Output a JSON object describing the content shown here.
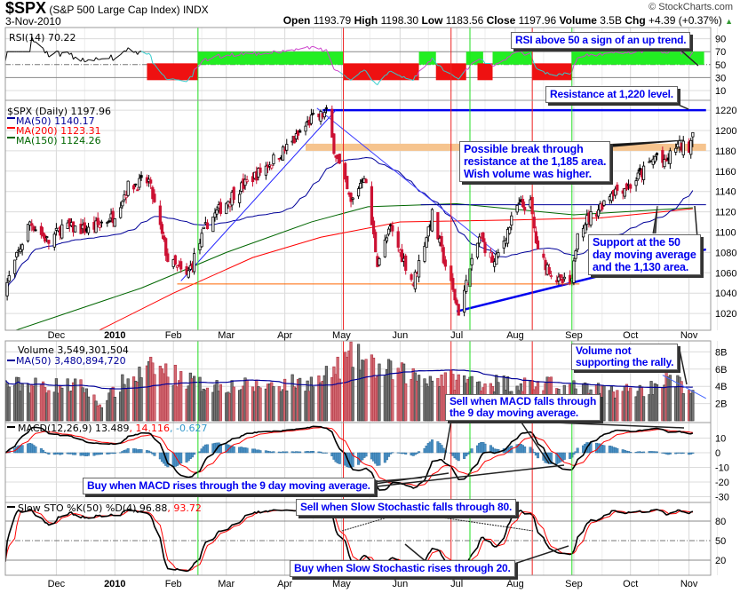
{
  "header": {
    "symbol": "$SPX",
    "name": "(S&P 500 Large Cap Index)",
    "exchange": "INDX",
    "date": "3-Nov-2010",
    "copyright": "© StockCharts.com",
    "open_label": "Open",
    "open": "1193.79",
    "high_label": "High",
    "high": "1198.30",
    "low_label": "Low",
    "low": "1183.56",
    "close_label": "Close",
    "close": "1197.96",
    "volume_label": "Volume",
    "volume": "3.5B",
    "chg_label": "Chg",
    "chg": "+4.39 (+0.37%)",
    "chg_arrow": "▲"
  },
  "labels": {
    "rsi": "RSI(14) 70.22",
    "price": "$SPX (Daily) 1197.96",
    "ma50": "MA(50) 1140.17",
    "ma200": "MA(200) 1123.31",
    "ma150": "MA(150) 1124.26",
    "volume": "Volume 3,549,301,504",
    "vol_ma": "MA(50) 3,480,894,720",
    "macd": "MACD(12,26,9) 13.489",
    "macd_signal": ", 14.116",
    "macd_hist": ", -0.627",
    "sto": "Slow STO %K(50) %D(4) 96.88",
    "sto_d": ", 93.72"
  },
  "annotations": {
    "rsi_note": "RSI above 50 a sign of an up trend.",
    "resistance_note": "Resistance at 1,220 level.",
    "breakout_note": [
      "Possible break through",
      "resistance at the 1,185 area.",
      "Wish volume was higher."
    ],
    "support_note": [
      "Support at the 50",
      "day moving average",
      "and the 1,130 area."
    ],
    "volume_note": [
      "Volume not",
      "supporting the rally."
    ],
    "macd_sell_note": [
      "Sell when MACD falls through",
      "the 9 day moving average."
    ],
    "macd_buy_note": "Buy when MACD rises through the 9 day moving average.",
    "sto_sell_note": "Sell when Slow Stochastic falls through 80.",
    "sto_buy_note": "Buy when Slow Stochastic rises through 20."
  },
  "chart_data": {
    "type": "candlestick",
    "title": "$SPX (S&P 500 Large Cap Index) INDX",
    "date_range": [
      "2009-11-04",
      "2010-11-03"
    ],
    "last_bar": {
      "open": 1193.79,
      "high": 1198.3,
      "low": 1183.56,
      "close": 1197.96,
      "volume_b": 3.55
    },
    "close_anchors": [
      [
        "2009-11-04",
        1045
      ],
      [
        "2009-11-17",
        1110
      ],
      [
        "2009-11-27",
        1090
      ],
      [
        "2009-12-04",
        1105
      ],
      [
        "2009-12-18",
        1102
      ],
      [
        "2009-12-31",
        1115
      ],
      [
        "2010-01-08",
        1145
      ],
      [
        "2010-01-19",
        1150
      ],
      [
        "2010-01-29",
        1073
      ],
      [
        "2010-02-08",
        1056
      ],
      [
        "2010-02-19",
        1109
      ],
      [
        "2010-03-05",
        1138
      ],
      [
        "2010-03-19",
        1160
      ],
      [
        "2010-04-05",
        1188
      ],
      [
        "2010-04-15",
        1211
      ],
      [
        "2010-04-23",
        1217
      ],
      [
        "2010-04-27",
        1183
      ],
      [
        "2010-05-06",
        1128
      ],
      [
        "2010-05-13",
        1157
      ],
      [
        "2010-05-20",
        1071
      ],
      [
        "2010-05-27",
        1103
      ],
      [
        "2010-06-08",
        1050
      ],
      [
        "2010-06-18",
        1117
      ],
      [
        "2010-06-24",
        1074
      ],
      [
        "2010-07-02",
        1022
      ],
      [
        "2010-07-13",
        1095
      ],
      [
        "2010-07-21",
        1069
      ],
      [
        "2010-08-02",
        1125
      ],
      [
        "2010-08-09",
        1127
      ],
      [
        "2010-08-13",
        1079
      ],
      [
        "2010-08-24",
        1051
      ],
      [
        "2010-08-31",
        1049
      ],
      [
        "2010-09-03",
        1104
      ],
      [
        "2010-09-13",
        1121
      ],
      [
        "2010-09-21",
        1140
      ],
      [
        "2010-10-01",
        1146
      ],
      [
        "2010-10-07",
        1158
      ],
      [
        "2010-10-15",
        1176
      ],
      [
        "2010-10-19",
        1166
      ],
      [
        "2010-10-25",
        1185
      ],
      [
        "2010-11-01",
        1184
      ],
      [
        "2010-11-03",
        1198
      ]
    ],
    "ma200_anchors": [
      [
        "2009-12-20",
        1000
      ],
      [
        "2010-02-01",
        1040
      ],
      [
        "2010-03-15",
        1075
      ],
      [
        "2010-04-20",
        1095
      ],
      [
        "2010-06-01",
        1110
      ],
      [
        "2010-08-01",
        1112
      ],
      [
        "2010-09-15",
        1114
      ],
      [
        "2010-11-03",
        1123
      ]
    ],
    "ma150_anchors": [
      [
        "2009-11-04",
        1000
      ],
      [
        "2010-01-15",
        1045
      ],
      [
        "2010-03-01",
        1080
      ],
      [
        "2010-04-15",
        1110
      ],
      [
        "2010-05-15",
        1125
      ],
      [
        "2010-07-01",
        1128
      ],
      [
        "2010-09-01",
        1117
      ],
      [
        "2010-11-03",
        1124
      ]
    ],
    "volume_anchors_b": [
      [
        "2009-11-04",
        4.2
      ],
      [
        "2009-12-15",
        4.0
      ],
      [
        "2009-12-24",
        1.8
      ],
      [
        "2010-01-05",
        4.3
      ],
      [
        "2010-01-22",
        6.2
      ],
      [
        "2010-02-15",
        4.2
      ],
      [
        "2010-03-15",
        4.0
      ],
      [
        "2010-04-20",
        4.6
      ],
      [
        "2010-05-07",
        7.5
      ],
      [
        "2010-05-20",
        6.0
      ],
      [
        "2010-06-15",
        5.0
      ],
      [
        "2010-07-15",
        4.5
      ],
      [
        "2010-08-15",
        4.2
      ],
      [
        "2010-09-15",
        3.5
      ],
      [
        "2010-10-10",
        3.6
      ],
      [
        "2010-10-20",
        5.0
      ],
      [
        "2010-11-03",
        3.55
      ]
    ],
    "series": [
      {
        "name": "MA(50)",
        "color": "#000099"
      },
      {
        "name": "MA(200)",
        "color": "#ff0000"
      },
      {
        "name": "MA(150)",
        "color": "#006600"
      }
    ],
    "month_labels": [
      [
        "2009-12-01",
        "Dec"
      ],
      [
        "2010-01-01",
        "2010"
      ],
      [
        "2010-02-01",
        "Feb"
      ],
      [
        "2010-03-01",
        "Mar"
      ],
      [
        "2010-04-01",
        "Apr"
      ],
      [
        "2010-05-01",
        "May"
      ],
      [
        "2010-06-01",
        "Jun"
      ],
      [
        "2010-07-01",
        "Jul"
      ],
      [
        "2010-08-01",
        "Aug"
      ],
      [
        "2010-09-01",
        "Sep"
      ],
      [
        "2010-10-01",
        "Oct"
      ],
      [
        "2010-11-01",
        "Nov"
      ]
    ],
    "price_ticks": [
      1220,
      1200,
      1180,
      1160,
      1140,
      1120,
      1100,
      1080,
      1060,
      1040,
      1020
    ],
    "rsi_ticks": [
      90,
      70,
      50,
      30,
      10
    ],
    "volume_ticks": [
      [
        8,
        "8B"
      ],
      [
        6,
        "6B"
      ],
      [
        4,
        "4B"
      ],
      [
        2,
        "2B"
      ]
    ],
    "macd_ticks": [
      10,
      0,
      -10,
      -20,
      -30
    ],
    "sto_ticks": [
      80,
      50,
      20
    ],
    "rsi_zones": [
      {
        "from": "2010-01-18",
        "to": "2010-02-14",
        "kind": "below"
      },
      {
        "from": "2010-02-14",
        "to": "2010-05-02",
        "kind": "above"
      },
      {
        "from": "2010-05-02",
        "to": "2010-06-11",
        "kind": "below"
      },
      {
        "from": "2010-06-11",
        "to": "2010-06-20",
        "kind": "above"
      },
      {
        "from": "2010-06-20",
        "to": "2010-07-06",
        "kind": "below"
      },
      {
        "from": "2010-07-06",
        "to": "2010-07-15",
        "kind": "above"
      },
      {
        "from": "2010-07-12",
        "to": "2010-07-20",
        "kind": "below"
      },
      {
        "from": "2010-07-20",
        "to": "2010-08-10",
        "kind": "above"
      },
      {
        "from": "2010-08-10",
        "to": "2010-08-31",
        "kind": "below"
      },
      {
        "from": "2010-08-31",
        "to": "2010-11-09",
        "kind": "above"
      }
    ],
    "signal_lines": [
      {
        "date": "2010-02-14",
        "kind": "buy"
      },
      {
        "date": "2010-05-02",
        "kind": "sell"
      },
      {
        "date": "2010-06-28",
        "kind": "sell"
      },
      {
        "date": "2010-07-08",
        "kind": "buy"
      },
      {
        "date": "2010-08-10",
        "kind": "sell"
      },
      {
        "date": "2010-08-31",
        "kind": "buy"
      }
    ],
    "trend_lines": [
      {
        "name": "resistance-1220",
        "color": "#0000ee",
        "width": 2.5,
        "points": [
          [
            "2010-04-21",
            1220
          ],
          [
            "2010-11-10",
            1220
          ]
        ]
      },
      {
        "name": "uptrend-feb-apr",
        "color": "#2222ff",
        "width": 1,
        "points": [
          [
            "2010-02-05",
            1052
          ],
          [
            "2010-04-28",
            1220
          ]
        ]
      },
      {
        "name": "downtrend-apr-jul",
        "color": "#4444ff",
        "width": 1,
        "points": [
          [
            "2010-04-18",
            1222
          ],
          [
            "2010-07-22",
            1080
          ]
        ]
      },
      {
        "name": "support-uptrend",
        "color": "#0000ee",
        "width": 2.5,
        "points": [
          [
            "2010-07-01",
            1022
          ],
          [
            "2010-11-10",
            1083
          ]
        ]
      },
      {
        "name": "support-1050",
        "color": "#ff6600",
        "width": 1,
        "points": [
          [
            "2010-02-03",
            1049
          ],
          [
            "2010-09-04",
            1049
          ]
        ]
      },
      {
        "name": "level-1127",
        "color": "#000099",
        "width": 1,
        "points": [
          [
            "2010-06-12",
            1127
          ],
          [
            "2010-11-10",
            1127
          ]
        ]
      },
      {
        "name": "volume-trend",
        "pane": "volume",
        "color": "#4466ff",
        "width": 1,
        "points": [
          [
            "2010-10-18",
            5.3
          ],
          [
            "2010-11-10",
            2.6
          ]
        ]
      }
    ],
    "resistance_band": {
      "from": "2010-04-12",
      "to": "2010-11-10",
      "low": 1180,
      "high": 1187,
      "color": "#f6c48e"
    },
    "colors": {
      "up": "#000000",
      "down": "#cc1133",
      "vol_up": "#777777",
      "vol_down": "#d36b73",
      "macd_hist": "#4a90c4",
      "rsi_above": "#22ee22",
      "rsi_below": "#ee1111",
      "buy_line": "#22dd22",
      "sell_line": "#ee2222"
    }
  }
}
